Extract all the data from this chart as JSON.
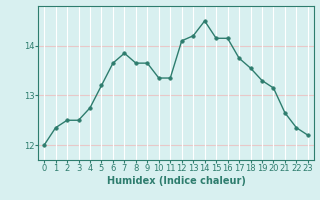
{
  "x": [
    0,
    1,
    2,
    3,
    4,
    5,
    6,
    7,
    8,
    9,
    10,
    11,
    12,
    13,
    14,
    15,
    16,
    17,
    18,
    19,
    20,
    21,
    22,
    23
  ],
  "y": [
    12.0,
    12.35,
    12.5,
    12.5,
    12.75,
    13.2,
    13.65,
    13.85,
    13.65,
    13.65,
    13.35,
    13.35,
    14.1,
    14.2,
    14.5,
    14.15,
    14.15,
    13.75,
    13.55,
    13.3,
    13.15,
    12.65,
    12.35,
    12.2
  ],
  "line_color": "#2e7d6e",
  "marker_color": "#2e7d6e",
  "bg_color": "#d8f0f0",
  "hgrid_color": "#e8c8c8",
  "vgrid_color": "#ffffff",
  "xlabel": "Humidex (Indice chaleur)",
  "ylim": [
    11.7,
    14.8
  ],
  "xlim": [
    -0.5,
    23.5
  ],
  "yticks": [
    12,
    13,
    14
  ],
  "xticks": [
    0,
    1,
    2,
    3,
    4,
    5,
    6,
    7,
    8,
    9,
    10,
    11,
    12,
    13,
    14,
    15,
    16,
    17,
    18,
    19,
    20,
    21,
    22,
    23
  ],
  "xlabel_fontsize": 7,
  "tick_fontsize": 6,
  "line_width": 1.0,
  "marker_size": 2.5
}
